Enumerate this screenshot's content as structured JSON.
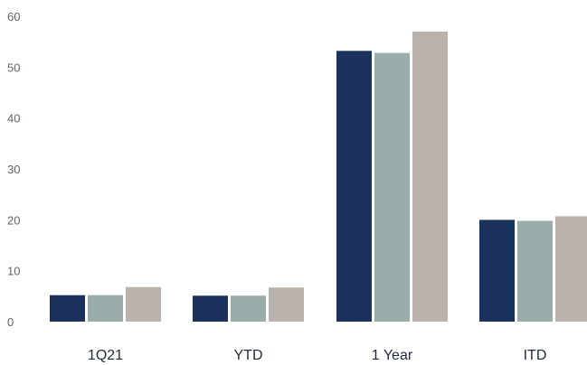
{
  "chart_data": {
    "type": "bar",
    "title": "",
    "xlabel": "",
    "ylabel": "",
    "categories": [
      "1Q21",
      "YTD",
      "1 Year",
      "ITD"
    ],
    "series": [
      {
        "values": [
          5.2,
          5.1,
          53.2,
          20.0
        ],
        "color": "#1b335c"
      },
      {
        "values": [
          5.2,
          5.1,
          52.8,
          19.8
        ],
        "color": "#9aadab"
      },
      {
        "values": [
          6.8,
          6.7,
          57.0,
          20.7
        ],
        "color": "#bab3ad"
      }
    ],
    "ylim": [
      0,
      60
    ],
    "yticks": [
      0,
      10,
      20,
      30,
      40,
      50,
      60
    ],
    "grid": false,
    "legend": "none"
  }
}
